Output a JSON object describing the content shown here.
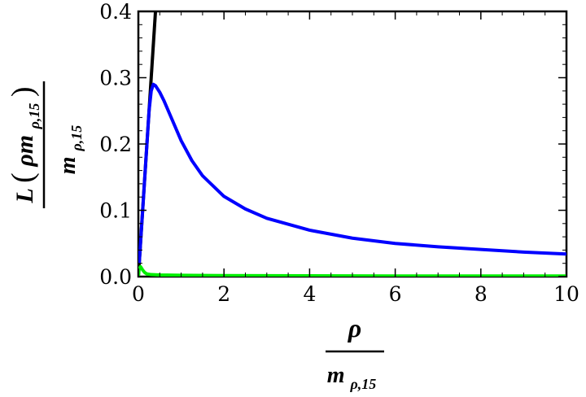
{
  "chart_data": {
    "type": "line",
    "xlabel": {
      "numerator": "ρ",
      "denominator": "m",
      "denominator_sub": "ρ,15"
    },
    "ylabel": {
      "numerator_prefix": "L",
      "numerator_inner": "ρm",
      "numerator_sub": "ρ,15",
      "denominator": "m",
      "denominator_sub": "ρ,15"
    },
    "xlim": [
      0,
      10
    ],
    "ylim": [
      0,
      0.4
    ],
    "x_ticks": [
      "0",
      "2",
      "4",
      "6",
      "8",
      "10"
    ],
    "y_ticks": [
      "0.0",
      "0.1",
      "0.2",
      "0.3",
      "0.4"
    ],
    "grid": false,
    "series": [
      {
        "color": "#000000",
        "x": [
          0.0,
          0.4
        ],
        "y": [
          0.0,
          0.4
        ]
      },
      {
        "color": "#0000ff",
        "x": [
          0.02,
          0.05,
          0.1,
          0.15,
          0.2,
          0.25,
          0.3,
          0.35,
          0.4,
          0.5,
          0.6,
          0.8,
          1.0,
          1.25,
          1.5,
          2.0,
          2.5,
          3.0,
          4.0,
          5.0,
          6.0,
          7.0,
          8.0,
          9.0,
          10.0
        ],
        "y": [
          0.02,
          0.05,
          0.1,
          0.15,
          0.2,
          0.25,
          0.28,
          0.29,
          0.288,
          0.278,
          0.265,
          0.235,
          0.205,
          0.175,
          0.152,
          0.121,
          0.102,
          0.088,
          0.07,
          0.058,
          0.05,
          0.045,
          0.041,
          0.037,
          0.034
        ]
      },
      {
        "color": "#00ee00",
        "x": [
          0.0,
          0.02,
          0.05,
          0.1,
          0.15,
          0.2,
          0.3,
          0.5,
          1.0,
          2.0,
          4.0,
          6.0,
          8.0,
          10.0
        ],
        "y": [
          0.0,
          0.012,
          0.015,
          0.01,
          0.006,
          0.004,
          0.003,
          0.0025,
          0.002,
          0.0015,
          0.0012,
          0.001,
          0.001,
          0.001
        ]
      }
    ]
  }
}
